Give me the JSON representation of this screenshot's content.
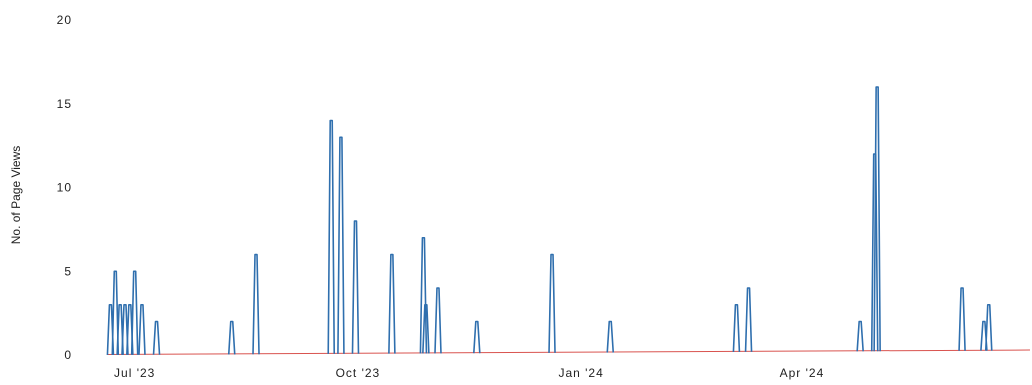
{
  "chart_data": {
    "type": "line",
    "ylabel": "No. of Page Views",
    "xlabel": "",
    "ylim": [
      0,
      20
    ],
    "y_ticks": [
      "0",
      "5",
      "10",
      "15",
      "20"
    ],
    "y_tick_values": [
      0,
      5,
      10,
      15,
      20
    ],
    "x_ticks": [
      {
        "label": "Jul '23",
        "date": "2023-07-01"
      },
      {
        "label": "Oct '23",
        "date": "2023-10-01"
      },
      {
        "label": "Jan '24",
        "date": "2024-01-01"
      },
      {
        "label": "Apr '24",
        "date": "2024-04-01"
      }
    ],
    "xlim": [
      "2023-06-20",
      "2024-07-04"
    ],
    "grid": false,
    "baseline_color": "#d9534f",
    "line_color": "#2f6fae",
    "series": [
      {
        "points": [
          {
            "date": "2023-06-21",
            "value": 3
          },
          {
            "date": "2023-06-23",
            "value": 5
          },
          {
            "date": "2023-06-25",
            "value": 3
          },
          {
            "date": "2023-06-27",
            "value": 3
          },
          {
            "date": "2023-06-29",
            "value": 3
          },
          {
            "date": "2023-07-01",
            "value": 5
          },
          {
            "date": "2023-07-04",
            "value": 3
          },
          {
            "date": "2023-07-10",
            "value": 2
          },
          {
            "date": "2023-08-10",
            "value": 2
          },
          {
            "date": "2023-08-20",
            "value": 6
          },
          {
            "date": "2023-09-20",
            "value": 14
          },
          {
            "date": "2023-09-24",
            "value": 13
          },
          {
            "date": "2023-09-30",
            "value": 8
          },
          {
            "date": "2023-10-15",
            "value": 6
          },
          {
            "date": "2023-10-28",
            "value": 7
          },
          {
            "date": "2023-10-29",
            "value": 3
          },
          {
            "date": "2023-11-03",
            "value": 4
          },
          {
            "date": "2023-11-19",
            "value": 2
          },
          {
            "date": "2023-12-20",
            "value": 6
          },
          {
            "date": "2024-01-13",
            "value": 2
          },
          {
            "date": "2024-03-05",
            "value": 3
          },
          {
            "date": "2024-03-10",
            "value": 4
          },
          {
            "date": "2024-04-25",
            "value": 2
          },
          {
            "date": "2024-05-01",
            "value": 12
          },
          {
            "date": "2024-05-02",
            "value": 16
          },
          {
            "date": "2024-06-06",
            "value": 4
          },
          {
            "date": "2024-06-15",
            "value": 2
          },
          {
            "date": "2024-06-17",
            "value": 3
          }
        ]
      }
    ]
  }
}
